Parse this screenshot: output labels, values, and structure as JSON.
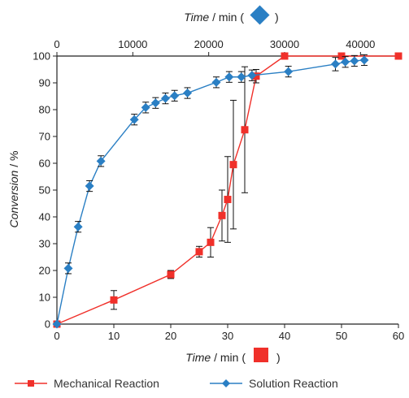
{
  "chart_data": {
    "type": "scatter",
    "top_axis": {
      "label_italic": "Time",
      "label_rest": " / min (",
      "label_close": ")",
      "marker": "diamond",
      "range": [
        0,
        45000
      ],
      "ticks": [
        0,
        10000,
        20000,
        30000,
        40000
      ]
    },
    "bottom_axis": {
      "label_italic": "Time",
      "label_rest": " / min (",
      "label_close": ")",
      "marker": "square",
      "range": [
        0,
        60
      ],
      "ticks": [
        0,
        10,
        20,
        30,
        40,
        50,
        60
      ]
    },
    "y_axis": {
      "label_italic": "Conversion",
      "label_rest": " / %",
      "range": [
        0,
        100
      ],
      "ticks": [
        0,
        10,
        20,
        30,
        40,
        50,
        60,
        70,
        80,
        90,
        100
      ]
    },
    "grid": false,
    "legend_position": "bottom",
    "series": [
      {
        "name": "Mechanical Reaction",
        "axis": "bottom",
        "color": "#f0302a",
        "marker": "square",
        "x": [
          0,
          10,
          20,
          25,
          27,
          29,
          30,
          31,
          33,
          35,
          40,
          50,
          60
        ],
        "y": [
          0,
          9,
          18.5,
          27,
          30.5,
          40.5,
          46.5,
          59.5,
          72.5,
          92.5,
          100,
          100,
          100
        ],
        "err": [
          0,
          3.5,
          1.5,
          2,
          5.5,
          9.5,
          16,
          24,
          23.5,
          2.5,
          0,
          0,
          0
        ]
      },
      {
        "name": "Solution Reaction",
        "axis": "top",
        "color": "#2a7fc4",
        "marker": "diamond",
        "x": [
          0,
          1500,
          2800,
          4300,
          5800,
          10200,
          11700,
          13000,
          14300,
          15500,
          17200,
          21000,
          22700,
          24300,
          25700,
          30500,
          36700,
          38000,
          39200,
          40500
        ],
        "y": [
          0,
          20.8,
          36.3,
          51.5,
          60.8,
          76.3,
          80.8,
          82.5,
          84.2,
          85.2,
          86.2,
          90.2,
          92.2,
          92.2,
          92.8,
          94.2,
          97.0,
          97.8,
          98.2,
          98.5
        ],
        "err": [
          0,
          2,
          2,
          2,
          2,
          2,
          2,
          2,
          2,
          2,
          2,
          2,
          2,
          2,
          2,
          2,
          2.5,
          2,
          2,
          2
        ]
      }
    ]
  }
}
